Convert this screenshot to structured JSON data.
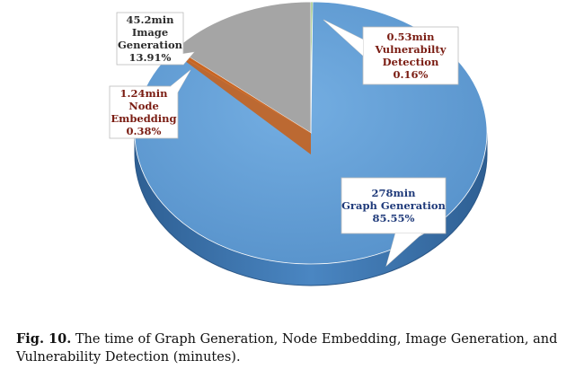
{
  "chart_data": {
    "type": "pie",
    "slices": [
      {
        "label": "Graph Generation",
        "value": 278,
        "value_text": "278min",
        "percent_text": "85.55%",
        "color": "#5b9bd5",
        "side_color": "#3f78b0",
        "text_color": "#1f3a7a"
      },
      {
        "label": "Node Embedding",
        "value": 1.24,
        "value_text": "1.24min",
        "percent_text": "0.38%",
        "color": "#ed7d31",
        "side_color": "#b85a1c",
        "text_color": "#7a1c12"
      },
      {
        "label": "Image Generation",
        "value": 45.2,
        "value_text": "45.2min",
        "percent_text": "13.91%",
        "color": "#a5a5a5",
        "side_color": "#7f7f7f",
        "text_color": "#2b2b2b"
      },
      {
        "label": "Vulnerabilty Detection",
        "value": 0.53,
        "value_text": "0.53min",
        "percent_text": "0.16%",
        "color": "#70ad47",
        "side_color": "#4e7f30",
        "text_color": "#7a1c12"
      }
    ],
    "unit": "minutes"
  },
  "labels": {
    "graph": [
      "278min",
      "Graph Generation",
      "85.55%"
    ],
    "node": [
      "1.24min",
      "Node",
      "Embedding",
      "0.38%"
    ],
    "image": [
      "45.2min",
      "Image",
      "Generation",
      "13.91%"
    ],
    "vuln": [
      "0.53min",
      "Vulnerabilty",
      "Detection",
      "0.16%"
    ]
  },
  "caption": {
    "prefix": "Fig. 10.",
    "text": " The time of Graph Generation, Node Embedding, Image Generation, and Vulnerability Detection (minutes)."
  }
}
